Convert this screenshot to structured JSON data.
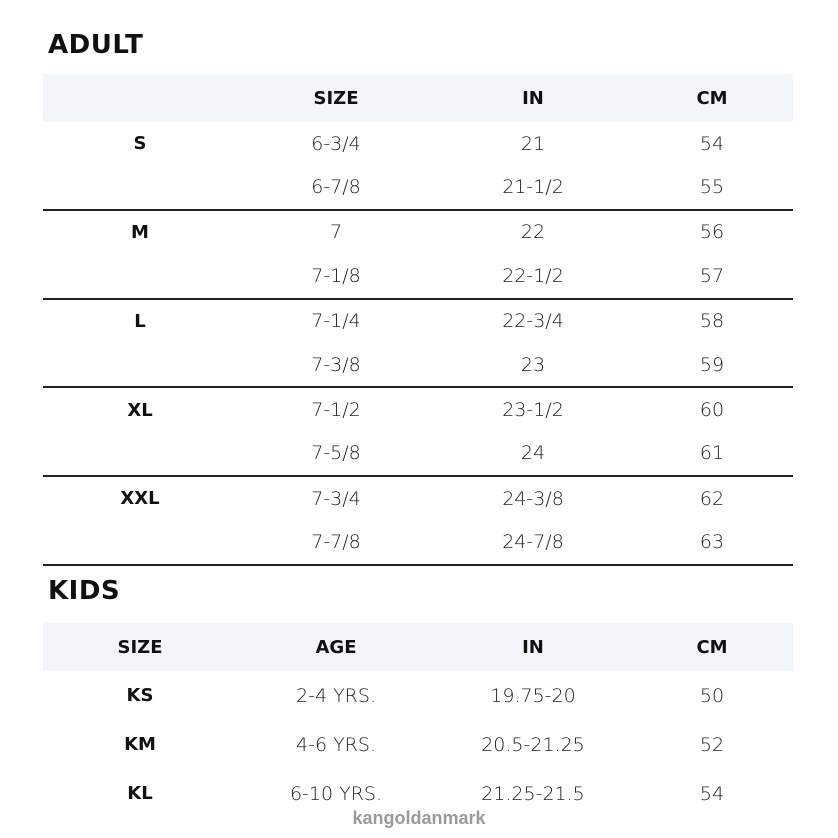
{
  "adult": {
    "title": "ADULT",
    "headers": [
      "",
      "SIZE",
      "IN",
      "CM"
    ],
    "rows": [
      [
        "S",
        "6-3/4",
        "21",
        "54"
      ],
      [
        "",
        "6-7/8",
        "21-1/2",
        "55"
      ],
      [
        "M",
        "7",
        "22",
        "56"
      ],
      [
        "",
        "7-1/8",
        "22-1/2",
        "57"
      ],
      [
        "L",
        "7-1/4",
        "22-3/4",
        "58"
      ],
      [
        "",
        "7-3/8",
        "23",
        "59"
      ],
      [
        "XL",
        "7-1/2",
        "23-1/2",
        "60"
      ],
      [
        "",
        "7-5/8",
        "24",
        "61"
      ],
      [
        "XXL",
        "7-3/4",
        "24-3/8",
        "62"
      ],
      [
        "",
        "7-7/8",
        "24-7/8",
        "63"
      ]
    ]
  },
  "kids": {
    "title": "KIDS",
    "headers": [
      "SIZE",
      "AGE",
      "IN",
      "CM"
    ],
    "rows": [
      [
        "KS",
        "2-4 YRS.",
        "19.75-20",
        "50"
      ],
      [
        "KM",
        "4-6 YRS.",
        "20.5-21.25",
        "52"
      ],
      [
        "KL",
        "6-10 YRS.",
        "21.25-21.5",
        "54"
      ]
    ]
  },
  "watermark": "kangoldanmark"
}
